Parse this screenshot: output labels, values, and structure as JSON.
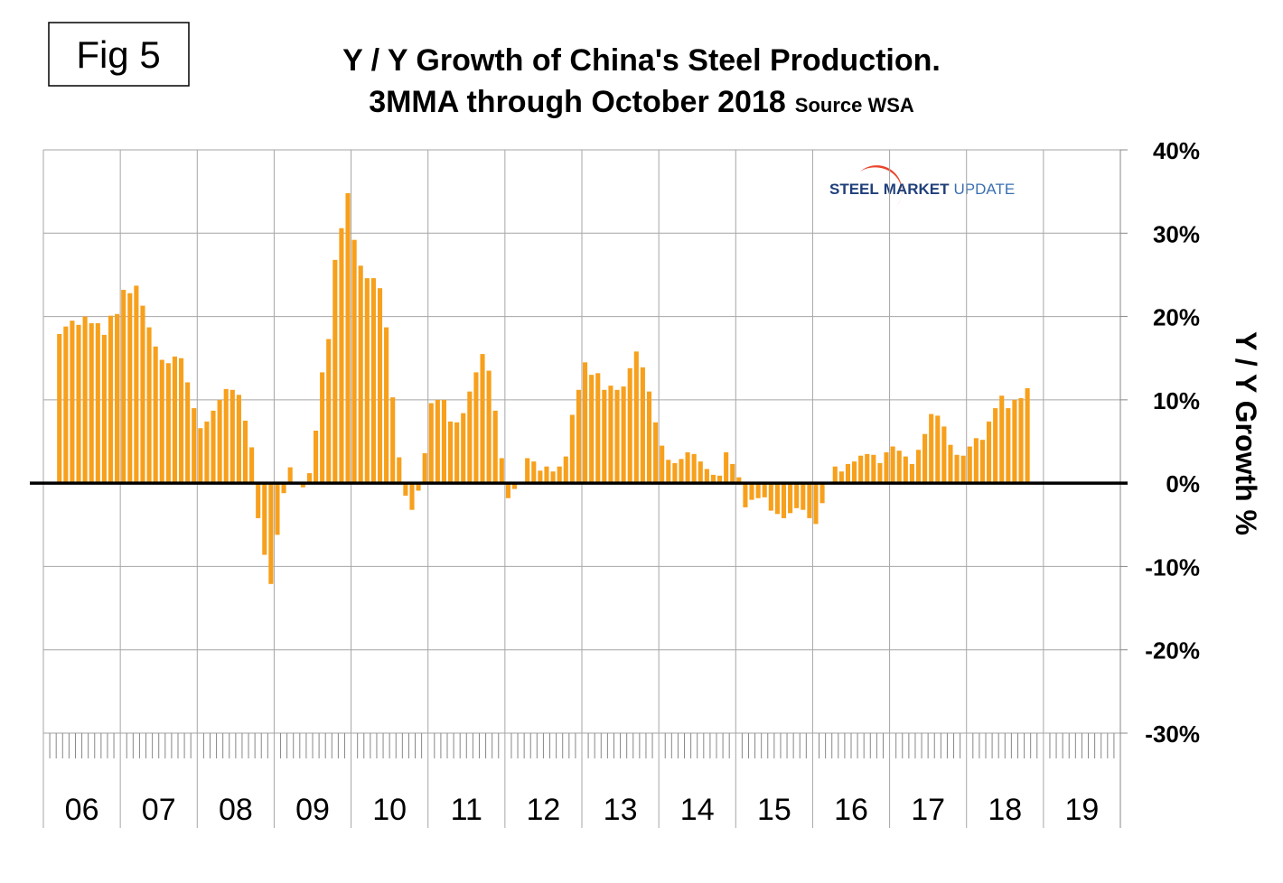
{
  "chart_data": {
    "type": "bar",
    "figure_label": "Fig 5",
    "title": "Y / Y Growth of China's Steel Production.",
    "subtitle": "3MMA through October 2018",
    "source": "Source WSA",
    "logo": {
      "part1": "STEEL",
      "part2": "MARKET",
      "part3": "UPDATE"
    },
    "y_label": "Y / Y Growth %",
    "years": [
      "06",
      "07",
      "08",
      "09",
      "10",
      "11",
      "12",
      "13",
      "14",
      "15",
      "16",
      "17",
      "18",
      "19"
    ],
    "color": "#F7A01C",
    "values": [
      null,
      null,
      17.9,
      18.8,
      19.5,
      19.0,
      20.0,
      19.2,
      19.2,
      17.8,
      20.1,
      20.3,
      23.2,
      22.8,
      23.7,
      21.3,
      18.7,
      16.4,
      14.8,
      14.4,
      15.2,
      15.0,
      12.1,
      9.0,
      6.6,
      7.4,
      8.7,
      10.0,
      11.3,
      11.2,
      10.6,
      7.5,
      4.3,
      -4.2,
      -8.6,
      -12.1,
      -6.2,
      -1.2,
      1.9,
      0.0,
      -0.5,
      1.2,
      6.3,
      13.3,
      17.3,
      26.8,
      30.6,
      34.8,
      29.2,
      26.1,
      24.6,
      24.6,
      23.4,
      18.7,
      10.3,
      3.1,
      -1.5,
      -3.2,
      -0.9,
      3.6,
      9.6,
      10.0,
      10.0,
      7.4,
      7.3,
      8.4,
      11.0,
      13.3,
      15.5,
      13.5,
      8.7,
      3.0,
      -1.8,
      -0.7,
      0.0,
      3.0,
      2.6,
      1.5,
      2.0,
      1.4,
      2.0,
      3.2,
      8.2,
      11.2,
      14.5,
      13.0,
      13.2,
      11.2,
      11.7,
      11.2,
      11.6,
      13.8,
      15.8,
      13.9,
      11.0,
      7.3,
      4.5,
      2.8,
      2.4,
      2.9,
      3.7,
      3.5,
      2.6,
      1.7,
      1.0,
      0.9,
      3.7,
      2.3,
      0.7,
      -2.9,
      -2.0,
      -1.8,
      -1.7,
      -3.3,
      -3.7,
      -4.2,
      -3.6,
      -3.0,
      -3.2,
      -4.2,
      -4.9,
      -2.4,
      0.0,
      2.0,
      1.4,
      2.3,
      2.6,
      3.3,
      3.5,
      3.4,
      2.4,
      3.7,
      4.4,
      3.9,
      3.2,
      2.3,
      4.0,
      5.9,
      8.3,
      8.1,
      6.8,
      4.6,
      3.4,
      3.3,
      4.4,
      5.4,
      5.2,
      7.4,
      9.0,
      10.5,
      9.0,
      10.0,
      10.2,
      11.4
    ],
    "ylim": [
      -30,
      40
    ],
    "yticks": [
      {
        "value": -30,
        "label": "-30%"
      },
      {
        "value": -20,
        "label": "-20%"
      },
      {
        "value": -10,
        "label": "-10%"
      },
      {
        "value": 0,
        "label": "0%"
      },
      {
        "value": 10,
        "label": "10%"
      },
      {
        "value": 20,
        "label": "20%"
      },
      {
        "value": 30,
        "label": "30%"
      },
      {
        "value": 40,
        "label": "40%"
      }
    ],
    "grid": true
  }
}
